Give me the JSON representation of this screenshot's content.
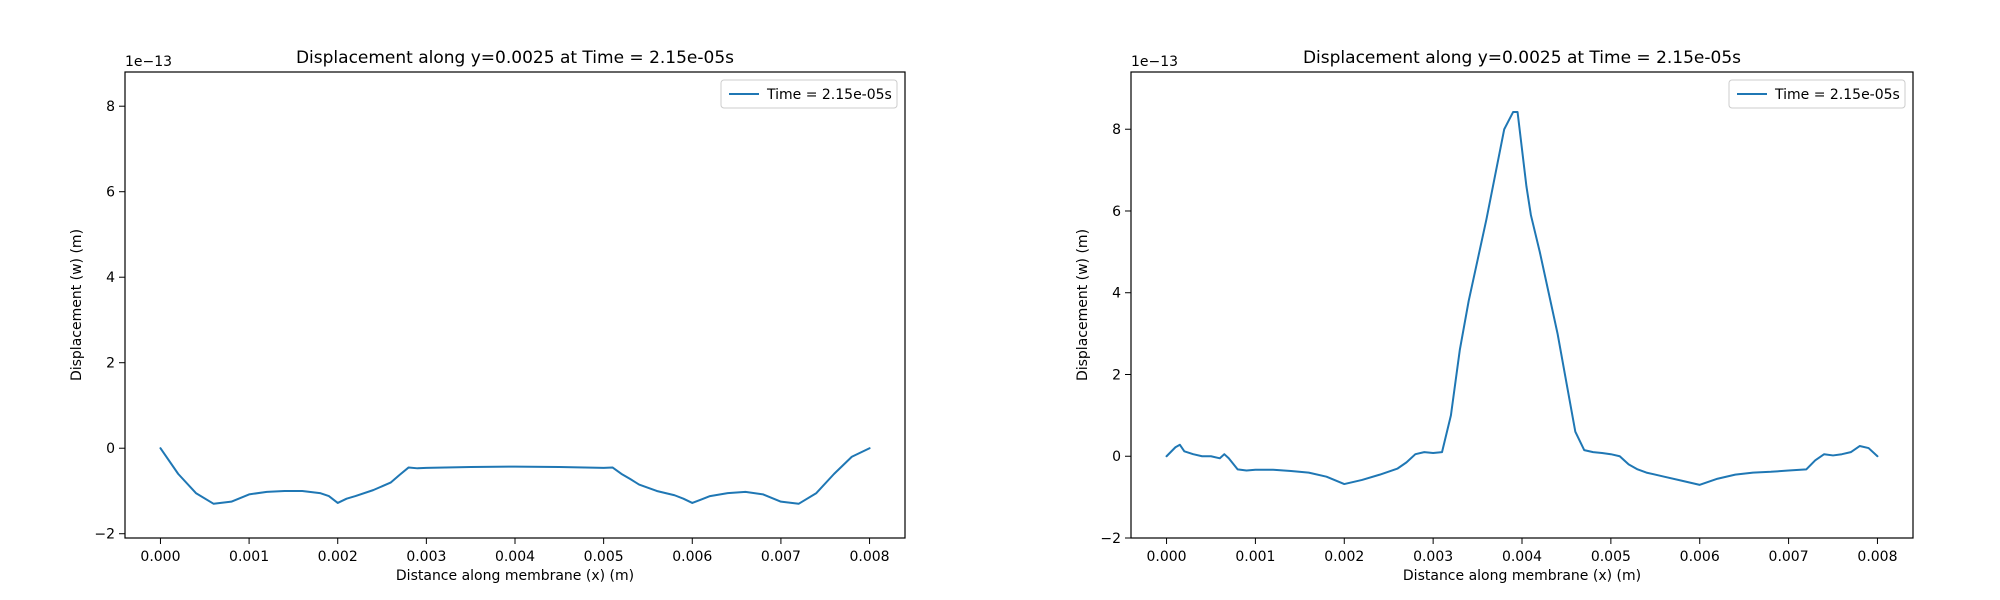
{
  "chart_data": [
    {
      "type": "line",
      "title": "Displacement along y=0.0025 at Time = 2.15e-05s",
      "xlabel": "Distance along membrane (x) (m)",
      "ylabel": "Displacement (w) (m)",
      "y_offset_label": "1e−13",
      "xlim": [
        -0.0004,
        0.0084
      ],
      "ylim": [
        -2.1,
        8.8
      ],
      "xticks": [
        "0.000",
        "0.001",
        "0.002",
        "0.003",
        "0.004",
        "0.005",
        "0.006",
        "0.007",
        "0.008"
      ],
      "yticks": [
        "−2",
        "0",
        "2",
        "4",
        "6",
        "8"
      ],
      "legend": "top-right",
      "color": "#1f77b4",
      "series": [
        {
          "name": "Time = 2.15e-05s",
          "x": [
            0.0,
            0.0002,
            0.0004,
            0.0006,
            0.0008,
            0.001,
            0.0012,
            0.0014,
            0.0016,
            0.0018,
            0.0019,
            0.002,
            0.0021,
            0.0022,
            0.0024,
            0.0026,
            0.0027,
            0.0028,
            0.0029,
            0.003,
            0.0035,
            0.004,
            0.0045,
            0.005,
            0.0051,
            0.0052,
            0.0053,
            0.0054,
            0.0056,
            0.0058,
            0.0059,
            0.006,
            0.0061,
            0.0062,
            0.0064,
            0.0066,
            0.0068,
            0.007,
            0.0072,
            0.0074,
            0.0076,
            0.0078,
            0.008
          ],
          "y": [
            0.0,
            -0.6,
            -1.05,
            -1.3,
            -1.25,
            -1.08,
            -1.02,
            -1.0,
            -1.0,
            -1.05,
            -1.12,
            -1.28,
            -1.18,
            -1.12,
            -0.98,
            -0.8,
            -0.62,
            -0.45,
            -0.47,
            -0.46,
            -0.44,
            -0.43,
            -0.44,
            -0.46,
            -0.45,
            -0.6,
            -0.72,
            -0.85,
            -1.0,
            -1.1,
            -1.18,
            -1.28,
            -1.2,
            -1.12,
            -1.05,
            -1.02,
            -1.08,
            -1.25,
            -1.3,
            -1.05,
            -0.6,
            -0.2,
            0.0
          ]
        }
      ]
    },
    {
      "type": "line",
      "title": "Displacement along y=0.0025 at Time = 2.15e-05s",
      "xlabel": "Distance along membrane (x) (m)",
      "ylabel": "Displacement (w) (m)",
      "y_offset_label": "1e−13",
      "xlim": [
        -0.0004,
        0.0084
      ],
      "ylim": [
        -2.0,
        9.4
      ],
      "xticks": [
        "0.000",
        "0.001",
        "0.002",
        "0.003",
        "0.004",
        "0.005",
        "0.006",
        "0.007",
        "0.008"
      ],
      "yticks": [
        "−2",
        "0",
        "2",
        "4",
        "6",
        "8"
      ],
      "legend": "top-right",
      "color": "#1f77b4",
      "series": [
        {
          "name": "Time = 2.15e-05s",
          "x": [
            0.0,
            0.0001,
            0.00015,
            0.0002,
            0.0003,
            0.0004,
            0.0005,
            0.0006,
            0.00065,
            0.0007,
            0.0008,
            0.0009,
            0.001,
            0.0012,
            0.0014,
            0.0016,
            0.0018,
            0.002,
            0.0022,
            0.0024,
            0.0026,
            0.0027,
            0.0028,
            0.0029,
            0.003,
            0.0031,
            0.0032,
            0.0033,
            0.0034,
            0.0035,
            0.0036,
            0.0037,
            0.0038,
            0.0039,
            0.00395,
            0.00405,
            0.0041,
            0.0042,
            0.0043,
            0.0044,
            0.0045,
            0.0046,
            0.0047,
            0.0048,
            0.0049,
            0.005,
            0.0051,
            0.0052,
            0.0053,
            0.0054,
            0.0056,
            0.0058,
            0.006,
            0.0062,
            0.0064,
            0.0066,
            0.0068,
            0.007,
            0.0072,
            0.0073,
            0.0074,
            0.0075,
            0.0076,
            0.0077,
            0.0078,
            0.0079,
            0.008
          ],
          "y": [
            0.0,
            0.22,
            0.28,
            0.12,
            0.05,
            0.0,
            0.0,
            -0.05,
            0.05,
            -0.05,
            -0.32,
            -0.35,
            -0.33,
            -0.33,
            -0.36,
            -0.4,
            -0.5,
            -0.68,
            -0.58,
            -0.45,
            -0.3,
            -0.15,
            0.05,
            0.1,
            0.08,
            0.1,
            1.0,
            2.6,
            3.8,
            4.8,
            5.8,
            6.9,
            8.0,
            8.42,
            8.42,
            6.6,
            5.9,
            5.0,
            4.0,
            3.0,
            1.8,
            0.6,
            0.15,
            0.1,
            0.08,
            0.05,
            0.0,
            -0.2,
            -0.32,
            -0.4,
            -0.5,
            -0.6,
            -0.7,
            -0.55,
            -0.45,
            -0.4,
            -0.38,
            -0.35,
            -0.32,
            -0.1,
            0.05,
            0.02,
            0.05,
            0.1,
            0.25,
            0.2,
            0.0
          ]
        }
      ]
    }
  ]
}
